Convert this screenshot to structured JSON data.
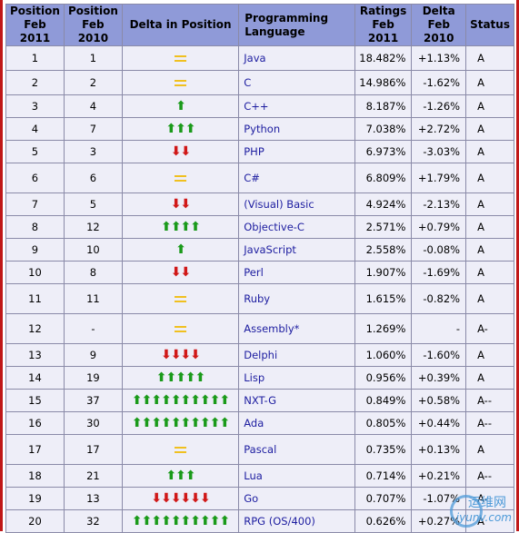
{
  "headers": {
    "pos2011": "Position Feb 2011",
    "pos2010": "Position Feb 2010",
    "delta_pos": "Delta in Position",
    "language": "Programming Language",
    "ratings": "Ratings Feb 2011",
    "delta": "Delta Feb 2010",
    "status": "Status"
  },
  "colors": {
    "up": "#1a9a1a",
    "down": "#d01818",
    "same": "#f0c020",
    "header_bg": "#8f9ad8",
    "row_bg": "#eeeef8",
    "link": "#1d1da0"
  },
  "rows": [
    {
      "pos2011": "1",
      "pos2010": "1",
      "trend": "same",
      "arrows": 0,
      "language": "Java",
      "ratings": "18.482%",
      "delta": "+1.13%",
      "status": "A"
    },
    {
      "pos2011": "2",
      "pos2010": "2",
      "trend": "same",
      "arrows": 0,
      "language": "C",
      "ratings": "14.986%",
      "delta": "-1.62%",
      "status": "A"
    },
    {
      "pos2011": "3",
      "pos2010": "4",
      "trend": "up",
      "arrows": 1,
      "language": "C++",
      "ratings": "8.187%",
      "delta": "-1.26%",
      "status": "A"
    },
    {
      "pos2011": "4",
      "pos2010": "7",
      "trend": "up",
      "arrows": 3,
      "language": "Python",
      "ratings": "7.038%",
      "delta": "+2.72%",
      "status": "A"
    },
    {
      "pos2011": "5",
      "pos2010": "3",
      "trend": "down",
      "arrows": 2,
      "language": "PHP",
      "ratings": "6.973%",
      "delta": "-3.03%",
      "status": "A"
    },
    {
      "pos2011": "6",
      "pos2010": "6",
      "trend": "same",
      "arrows": 0,
      "language": "C#",
      "ratings": "6.809%",
      "delta": "+1.79%",
      "status": "A"
    },
    {
      "pos2011": "7",
      "pos2010": "5",
      "trend": "down",
      "arrows": 2,
      "language": "(Visual) Basic",
      "ratings": "4.924%",
      "delta": "-2.13%",
      "status": "A"
    },
    {
      "pos2011": "8",
      "pos2010": "12",
      "trend": "up",
      "arrows": 4,
      "language": "Objective-C",
      "ratings": "2.571%",
      "delta": "+0.79%",
      "status": "A"
    },
    {
      "pos2011": "9",
      "pos2010": "10",
      "trend": "up",
      "arrows": 1,
      "language": "JavaScript",
      "ratings": "2.558%",
      "delta": "-0.08%",
      "status": "A"
    },
    {
      "pos2011": "10",
      "pos2010": "8",
      "trend": "down",
      "arrows": 2,
      "language": "Perl",
      "ratings": "1.907%",
      "delta": "-1.69%",
      "status": "A"
    },
    {
      "pos2011": "11",
      "pos2010": "11",
      "trend": "same",
      "arrows": 0,
      "language": "Ruby",
      "ratings": "1.615%",
      "delta": "-0.82%",
      "status": "A"
    },
    {
      "pos2011": "12",
      "pos2010": "-",
      "trend": "same",
      "arrows": 0,
      "language": "Assembly*",
      "ratings": "1.269%",
      "delta": "-",
      "status": "A-"
    },
    {
      "pos2011": "13",
      "pos2010": "9",
      "trend": "down",
      "arrows": 4,
      "language": "Delphi",
      "ratings": "1.060%",
      "delta": "-1.60%",
      "status": "A"
    },
    {
      "pos2011": "14",
      "pos2010": "19",
      "trend": "up",
      "arrows": 5,
      "language": "Lisp",
      "ratings": "0.956%",
      "delta": "+0.39%",
      "status": "A"
    },
    {
      "pos2011": "15",
      "pos2010": "37",
      "trend": "up",
      "arrows": 10,
      "language": "NXT-G",
      "ratings": "0.849%",
      "delta": "+0.58%",
      "status": "A--"
    },
    {
      "pos2011": "16",
      "pos2010": "30",
      "trend": "up",
      "arrows": 10,
      "language": "Ada",
      "ratings": "0.805%",
      "delta": "+0.44%",
      "status": "A--"
    },
    {
      "pos2011": "17",
      "pos2010": "17",
      "trend": "same",
      "arrows": 0,
      "language": "Pascal",
      "ratings": "0.735%",
      "delta": "+0.13%",
      "status": "A"
    },
    {
      "pos2011": "18",
      "pos2010": "21",
      "trend": "up",
      "arrows": 3,
      "language": "Lua",
      "ratings": "0.714%",
      "delta": "+0.21%",
      "status": "A--"
    },
    {
      "pos2011": "19",
      "pos2010": "13",
      "trend": "down",
      "arrows": 6,
      "language": "Go",
      "ratings": "0.707%",
      "delta": "-1.07%",
      "status": "A-"
    },
    {
      "pos2011": "20",
      "pos2010": "32",
      "trend": "up",
      "arrows": 10,
      "language": "RPG (OS/400)",
      "ratings": "0.626%",
      "delta": "+0.27%",
      "status": "A"
    }
  ],
  "watermark": {
    "line1": "运维网",
    "line2": "iyunv.com"
  }
}
